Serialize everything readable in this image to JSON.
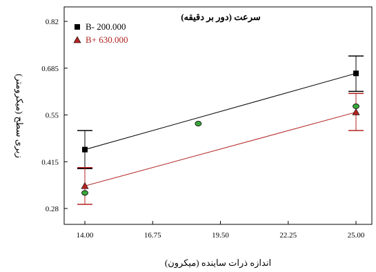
{
  "chart_data": {
    "type": "line",
    "title": "سرعت (دور بر دقیقه)",
    "xlabel": "اندازه ذرات ساینده (میکرون)",
    "ylabel": "زبری سطح (میکرومتر)",
    "xlim": [
      14.0,
      25.0
    ],
    "ylim": [
      0.27,
      0.84
    ],
    "x_ticks": [
      "14.00",
      "16.75",
      "19.50",
      "22.25",
      "25.00"
    ],
    "x_tick_values": [
      14.0,
      16.75,
      19.5,
      22.25,
      25.0
    ],
    "y_ticks": [
      "0.28",
      "0.415",
      "0.55",
      "0.685",
      "0.82"
    ],
    "y_tick_values": [
      0.28,
      0.415,
      0.55,
      0.685,
      0.82
    ],
    "grid": false,
    "legend_position": "top-left",
    "series": [
      {
        "name": "B- 200.000",
        "color": "#000000",
        "marker": "square",
        "x": [
          14.0,
          25.0
        ],
        "y": [
          0.45,
          0.67
        ],
        "error_upper": [
          0.505,
          0.72
        ],
        "error_lower": [
          0.395,
          0.618
        ]
      },
      {
        "name": "B+ 630.000",
        "color": "#b22222",
        "marker": "triangle",
        "x": [
          14.0,
          25.0
        ],
        "y": [
          0.345,
          0.558
        ],
        "error_upper": [
          0.398,
          0.612
        ],
        "error_lower": [
          0.292,
          0.505
        ]
      }
    ],
    "observed_points": {
      "color": "#3aa63a",
      "marker": "circle",
      "x": [
        14.0,
        18.6,
        25.0
      ],
      "y": [
        0.325,
        0.525,
        0.575
      ]
    }
  }
}
